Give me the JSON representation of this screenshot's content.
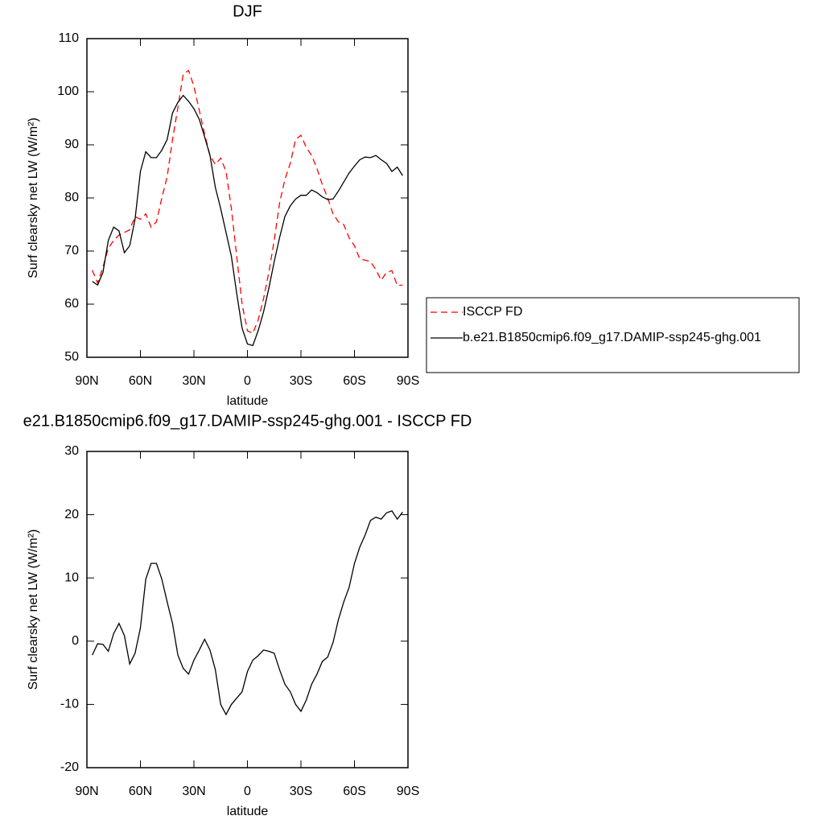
{
  "chart_data": [
    {
      "type": "line",
      "title": "DJF",
      "xlabel": "latitude",
      "ylabel": "Surf clearsky net LW (W/m²)",
      "x": [
        87,
        84,
        81,
        78,
        75,
        72,
        69,
        66,
        63,
        60,
        57,
        54,
        51,
        48,
        45,
        42,
        39,
        36,
        33,
        30,
        27,
        24,
        21,
        18,
        15,
        12,
        9,
        6,
        3,
        0,
        -3,
        -6,
        -9,
        -12,
        -15,
        -18,
        -21,
        -24,
        -27,
        -30,
        -33,
        -36,
        -39,
        -42,
        -45,
        -48,
        -51,
        -54,
        -57,
        -60,
        -63,
        -66,
        -69,
        -72,
        -75,
        -78,
        -81,
        -84,
        -87
      ],
      "xlim": [
        90,
        -90
      ],
      "xticks": [
        {
          "value": 90,
          "label": "90N"
        },
        {
          "value": 60,
          "label": "60N"
        },
        {
          "value": 30,
          "label": "30N"
        },
        0,
        {
          "value": -30,
          "label": "30S"
        },
        {
          "value": -60,
          "label": "60S"
        },
        {
          "value": -90,
          "label": "90S"
        }
      ],
      "ylim": [
        50,
        110
      ],
      "yticks": [
        50,
        60,
        70,
        80,
        90,
        100,
        110
      ],
      "legend_position": "right",
      "series": [
        {
          "name": "ISCCP FD",
          "color": "#ff0000",
          "dashed": true,
          "values": [
            66.4,
            64,
            67,
            70.5,
            72,
            73,
            73.5,
            74,
            76.5,
            76,
            77,
            74.5,
            75.5,
            80,
            84,
            91,
            97,
            103.3,
            104,
            101,
            96.5,
            92,
            88,
            86.3,
            87.5,
            85,
            78,
            69,
            60,
            55,
            54.5,
            57,
            61,
            66,
            72,
            79,
            83.5,
            86.5,
            91,
            91.8,
            89.5,
            88,
            85.5,
            82.5,
            80,
            77,
            75.5,
            75,
            72.5,
            71,
            68.5,
            68.3,
            68,
            66.5,
            64.5,
            66,
            66.3,
            63.5,
            63.6
          ]
        },
        {
          "name": "b.e21.B1850cmip6.f09_g17.DAMIP-ssp245-ghg.001",
          "color": "#000000",
          "dashed": false,
          "values": [
            64.3,
            63.6,
            66,
            72,
            74.5,
            73.8,
            69.7,
            71,
            76,
            85,
            88.7,
            87.6,
            87.6,
            89,
            91,
            96,
            98,
            99.3,
            98.2,
            96.8,
            94.8,
            91.5,
            88,
            82,
            78,
            73.5,
            69,
            62,
            55.5,
            52.5,
            52.2,
            55,
            58.5,
            63,
            68,
            72.5,
            76.5,
            78.5,
            79.8,
            80.5,
            80.5,
            81.5,
            81,
            80.2,
            79.7,
            79.8,
            81.3,
            83,
            84.7,
            86,
            87.2,
            87.7,
            87.6,
            88,
            87.2,
            86.5,
            85,
            85.8,
            84.2
          ]
        }
      ]
    },
    {
      "type": "line",
      "title": "e21.B1850cmip6.f09_g17.DAMIP-ssp245-ghg.001 - ISCCP FD",
      "xlabel": "latitude",
      "ylabel": "Surf clearsky net LW (W/m²)",
      "x": [
        87,
        84,
        81,
        78,
        75,
        72,
        69,
        66,
        63,
        60,
        57,
        54,
        51,
        48,
        45,
        42,
        39,
        36,
        33,
        30,
        27,
        24,
        21,
        18,
        15,
        12,
        9,
        6,
        3,
        0,
        -3,
        -6,
        -9,
        -12,
        -15,
        -18,
        -21,
        -24,
        -27,
        -30,
        -33,
        -36,
        -39,
        -42,
        -45,
        -48,
        -51,
        -54,
        -57,
        -60,
        -63,
        -66,
        -69,
        -72,
        -75,
        -78,
        -81,
        -84,
        -87
      ],
      "xlim": [
        90,
        -90
      ],
      "xticks": [
        {
          "value": 90,
          "label": "90N"
        },
        {
          "value": 60,
          "label": "60N"
        },
        {
          "value": 30,
          "label": "30N"
        },
        0,
        {
          "value": -30,
          "label": "30S"
        },
        {
          "value": -60,
          "label": "60S"
        },
        {
          "value": -90,
          "label": "90S"
        }
      ],
      "ylim": [
        -20,
        30
      ],
      "yticks": [
        -20,
        -10,
        0,
        10,
        20,
        30
      ],
      "color": "#000000",
      "values": [
        -2.2,
        -0.4,
        -0.5,
        -1.6,
        1.2,
        2.8,
        0.9,
        -3.6,
        -1.9,
        2.1,
        9.8,
        12.3,
        12.3,
        9.8,
        6.2,
        2.8,
        -2.2,
        -4.3,
        -5.2,
        -3,
        -1.4,
        0.3,
        -1.4,
        -4.5,
        -10,
        -11.6,
        -10,
        -9,
        -8,
        -4.8,
        -3,
        -2.3,
        -1.4,
        -1.6,
        -1.9,
        -4.5,
        -6.8,
        -8,
        -10,
        -11.1,
        -9.3,
        -6.8,
        -5.2,
        -3.2,
        -2.5,
        -0.2,
        3.4,
        6.2,
        8.5,
        12.3,
        14.9,
        16.8,
        19.1,
        19.6,
        19.3,
        20.3,
        20.6,
        19.3,
        20.4
      ]
    }
  ]
}
